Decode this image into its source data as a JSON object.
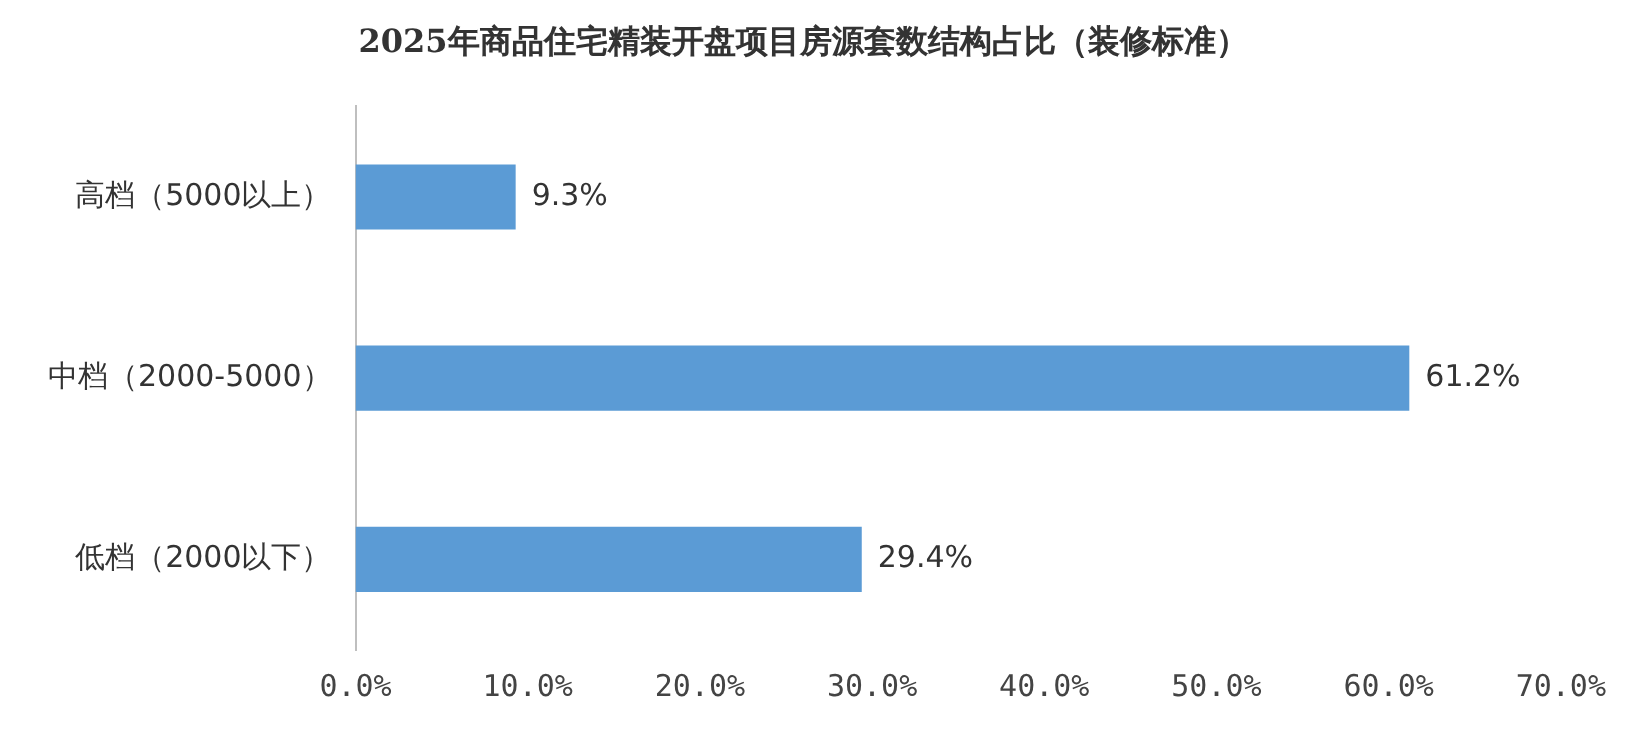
{
  "chart_data": {
    "type": "bar",
    "orientation": "horizontal",
    "title": "2025年商品住宅精装开盘项目房源套数结构占比（装修标准）",
    "categories": [
      "高档（5000以上）",
      "中档（2000-5000）",
      "低档（2000以下）"
    ],
    "values": [
      9.3,
      61.2,
      29.4
    ],
    "color": "#5b9bd5",
    "value_labels": [
      "9.3%",
      "61.2%",
      "29.4%"
    ],
    "xlim": [
      0,
      70
    ],
    "xticks": [
      {
        "value": 0,
        "label": "0.0%"
      },
      {
        "value": 10,
        "label": "10.0%"
      },
      {
        "value": 20,
        "label": "20.0%"
      },
      {
        "value": 30,
        "label": "30.0%"
      },
      {
        "value": 40,
        "label": "40.0%"
      },
      {
        "value": 50,
        "label": "50.0%"
      },
      {
        "value": 60,
        "label": "60.0%"
      },
      {
        "value": 70,
        "label": "70.0%"
      }
    ],
    "grid": false,
    "legend": false
  }
}
